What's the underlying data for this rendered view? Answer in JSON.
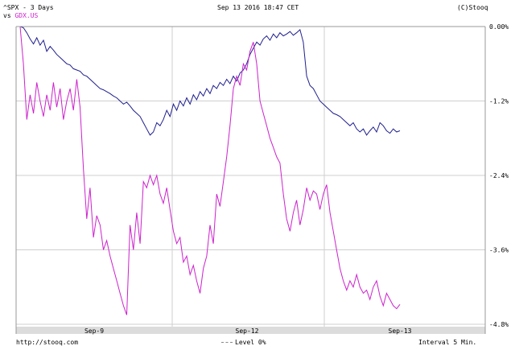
{
  "header": {
    "title_line": "^SPX - 3 Days",
    "vs_prefix": "vs",
    "compare_symbol": "GDX.US",
    "datetime": "Sep 13 2016 18:47 CET",
    "brand": "(C)Stooq"
  },
  "footer": {
    "url": "http://stooq.com",
    "legend_level": "Level 0%",
    "interval": "Interval 5 Min."
  },
  "colors": {
    "spx_line": "#1f1f8f",
    "gdx_line": "#cc22cc",
    "compare_label": "#cc22cc",
    "grid": "#cfcfcf",
    "zero_line": "#888888",
    "axis_band": "#dcdcdc"
  },
  "chart_data": {
    "type": "line",
    "x_labels": [
      "Sep-9",
      "Sep-12",
      "Sep-13"
    ],
    "y_ticks": [
      "0.00%",
      "-1.2%",
      "-2.4%",
      "-3.6%",
      "-4.8%"
    ],
    "ylim": [
      -4.8,
      0.0
    ],
    "grid": true,
    "reference_line": {
      "label": "Level 0%",
      "value": 0.0
    },
    "series": [
      {
        "name": "^SPX",
        "x": [
          0,
          2,
          4,
          6,
          8,
          10,
          12,
          14,
          16,
          18,
          20,
          22,
          24,
          26,
          28,
          30,
          32,
          34,
          36,
          38,
          40,
          42,
          44,
          46,
          48,
          50,
          52,
          54,
          56,
          58,
          60,
          62,
          64,
          66,
          68,
          70,
          72,
          74,
          76,
          78,
          80,
          82,
          84,
          86,
          88,
          90,
          92,
          94,
          96,
          98,
          100,
          102,
          104,
          106,
          108,
          110,
          112,
          114,
          116,
          118,
          120,
          122,
          124,
          126,
          128,
          130,
          132,
          134,
          136,
          138,
          140,
          142,
          144,
          146,
          148,
          150,
          152,
          154,
          156,
          158,
          160,
          162,
          164,
          166,
          168,
          170,
          172,
          174,
          176,
          178,
          180,
          182,
          184,
          186,
          188,
          190,
          192,
          194,
          196,
          198,
          200,
          202,
          204,
          206,
          208,
          210,
          212,
          214,
          216,
          218,
          220,
          222,
          224,
          226,
          228
        ],
        "values": [
          0.0,
          -0.02,
          -0.1,
          -0.2,
          -0.28,
          -0.18,
          -0.3,
          -0.22,
          -0.4,
          -0.32,
          -0.38,
          -0.45,
          -0.5,
          -0.55,
          -0.6,
          -0.62,
          -0.68,
          -0.7,
          -0.72,
          -0.78,
          -0.8,
          -0.85,
          -0.9,
          -0.95,
          -1.0,
          -1.02,
          -1.05,
          -1.08,
          -1.12,
          -1.15,
          -1.2,
          -1.25,
          -1.22,
          -1.28,
          -1.35,
          -1.4,
          -1.45,
          -1.55,
          -1.65,
          -1.75,
          -1.7,
          -1.55,
          -1.6,
          -1.5,
          -1.35,
          -1.45,
          -1.25,
          -1.35,
          -1.2,
          -1.28,
          -1.15,
          -1.25,
          -1.1,
          -1.18,
          -1.05,
          -1.12,
          -1.0,
          -1.08,
          -0.95,
          -1.0,
          -0.9,
          -0.95,
          -0.85,
          -0.92,
          -0.8,
          -0.88,
          -0.75,
          -0.7,
          -0.6,
          -0.45,
          -0.35,
          -0.25,
          -0.3,
          -0.2,
          -0.15,
          -0.22,
          -0.12,
          -0.18,
          -0.1,
          -0.15,
          -0.12,
          -0.08,
          -0.14,
          -0.1,
          -0.05,
          -0.25,
          -0.8,
          -0.95,
          -1.0,
          -1.1,
          -1.2,
          -1.25,
          -1.3,
          -1.35,
          -1.4,
          -1.42,
          -1.45,
          -1.5,
          -1.55,
          -1.6,
          -1.55,
          -1.65,
          -1.7,
          -1.65,
          -1.75,
          -1.68,
          -1.62,
          -1.7,
          -1.55,
          -1.6,
          -1.68,
          -1.72,
          -1.65,
          -1.7,
          -1.68
        ],
        "color": "#1f1f8f"
      },
      {
        "name": "GDX.US",
        "x": [
          0,
          2,
          4,
          6,
          8,
          10,
          12,
          14,
          16,
          18,
          20,
          22,
          24,
          26,
          28,
          30,
          32,
          34,
          36,
          38,
          40,
          42,
          44,
          46,
          48,
          50,
          52,
          54,
          56,
          58,
          60,
          62,
          64,
          66,
          68,
          70,
          72,
          74,
          76,
          78,
          80,
          82,
          84,
          86,
          88,
          90,
          92,
          94,
          96,
          98,
          100,
          102,
          104,
          106,
          108,
          110,
          112,
          114,
          116,
          118,
          120,
          122,
          124,
          126,
          128,
          130,
          132,
          134,
          136,
          138,
          140,
          142,
          144,
          146,
          148,
          150,
          152,
          154,
          156,
          158,
          160,
          162,
          164,
          166,
          168,
          170,
          172,
          174,
          176,
          178,
          180,
          182,
          184,
          186,
          188,
          190,
          192,
          194,
          196,
          198,
          200,
          202,
          204,
          206,
          208,
          210,
          212,
          214,
          216,
          218,
          220,
          222,
          224,
          226,
          228
        ],
        "values": [
          0.0,
          -0.6,
          -1.5,
          -1.1,
          -1.4,
          -0.9,
          -1.2,
          -1.45,
          -1.1,
          -1.35,
          -0.9,
          -1.3,
          -1.0,
          -1.5,
          -1.2,
          -1.0,
          -1.35,
          -0.85,
          -1.3,
          -2.3,
          -3.1,
          -2.6,
          -3.4,
          -3.05,
          -3.2,
          -3.6,
          -3.45,
          -3.7,
          -3.9,
          -4.1,
          -4.3,
          -4.5,
          -4.65,
          -3.2,
          -3.6,
          -3.0,
          -3.5,
          -2.5,
          -2.6,
          -2.4,
          -2.55,
          -2.4,
          -2.7,
          -2.85,
          -2.6,
          -2.95,
          -3.3,
          -3.5,
          -3.4,
          -3.8,
          -3.7,
          -4.0,
          -3.85,
          -4.1,
          -4.3,
          -3.9,
          -3.7,
          -3.2,
          -3.5,
          -2.7,
          -2.9,
          -2.5,
          -2.1,
          -1.6,
          -1.0,
          -0.8,
          -0.95,
          -0.6,
          -0.7,
          -0.4,
          -0.25,
          -0.6,
          -1.2,
          -1.4,
          -1.6,
          -1.8,
          -1.95,
          -2.1,
          -2.2,
          -2.7,
          -3.1,
          -3.3,
          -3.0,
          -2.8,
          -3.2,
          -2.95,
          -2.6,
          -2.8,
          -2.65,
          -2.7,
          -2.95,
          -2.7,
          -2.55,
          -3.0,
          -3.3,
          -3.6,
          -3.9,
          -4.1,
          -4.25,
          -4.1,
          -4.2,
          -4.0,
          -4.2,
          -4.3,
          -4.25,
          -4.4,
          -4.2,
          -4.1,
          -4.35,
          -4.5,
          -4.3,
          -4.4,
          -4.5,
          -4.55,
          -4.48
        ],
        "color": "#cc22cc"
      }
    ]
  }
}
